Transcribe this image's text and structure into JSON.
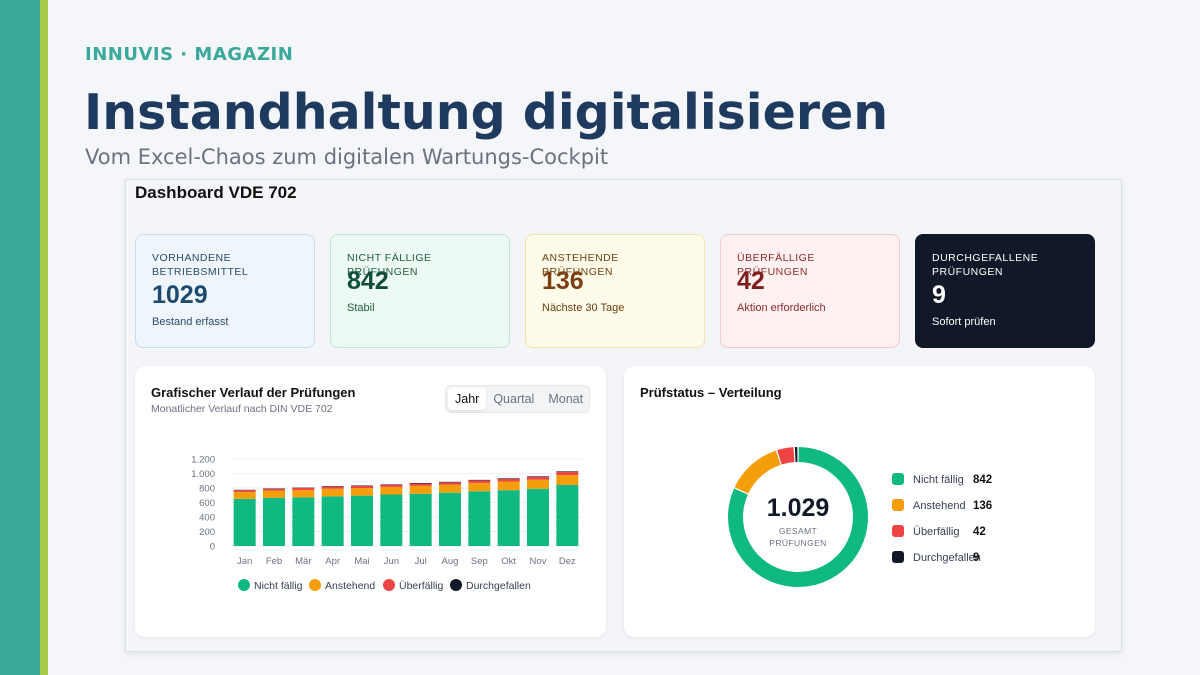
{
  "header": {
    "brand": "INNUVIS · MAGAZIN",
    "title": "Instandhaltung digitalisieren",
    "subtitle": "Vom Excel-Chaos zum digitalen Wartungs-Cockpit"
  },
  "dashboard": {
    "title": "Dashboard VDE 702",
    "cards": [
      {
        "label": "VORHANDENE BETRIEBSMITTEL",
        "value": 1029,
        "note": "Bestand erfasst"
      },
      {
        "label": "NICHT FÄLLIGE PRÜFUNGEN",
        "value": 842,
        "note": "Stabil"
      },
      {
        "label": "ANSTEHENDE PRÜFUNGEN",
        "value": 136,
        "note": "Nächste 30 Tage"
      },
      {
        "label": "ÜBERFÄLLIGE PRÜFUNGEN",
        "value": 42,
        "note": "Aktion erforderlich"
      },
      {
        "label": "DURCHGEFALLENE PRÜFUNGEN",
        "value": 9,
        "note": "Sofort prüfen"
      }
    ],
    "tabs": [
      "Jahr",
      "Quartal",
      "Monat"
    ]
  },
  "chart_data": [
    {
      "type": "bar",
      "stacked": true,
      "title": "Grafischer Verlauf der Prüfungen",
      "subtitle": "Monatlicher Verlauf nach DIN VDE 702",
      "categories": [
        "Jan",
        "Feb",
        "Mär",
        "Apr",
        "Mai",
        "Jun",
        "Jul",
        "Aug",
        "Sep",
        "Okt",
        "Nov",
        "Dez"
      ],
      "series": [
        {
          "name": "Nicht fällig",
          "color": "#10b981",
          "values": [
            650,
            665,
            672,
            685,
            695,
            710,
            720,
            735,
            755,
            770,
            790,
            842
          ]
        },
        {
          "name": "Anstehend",
          "color": "#f59e0b",
          "values": [
            95,
            100,
            100,
            105,
            105,
            105,
            110,
            110,
            115,
            120,
            125,
            136
          ]
        },
        {
          "name": "Überfällig",
          "color": "#ef4444",
          "values": [
            25,
            25,
            28,
            30,
            30,
            30,
            32,
            33,
            35,
            36,
            38,
            42
          ]
        },
        {
          "name": "Durchgefallen",
          "color": "#111827",
          "values": [
            5,
            5,
            5,
            6,
            6,
            6,
            7,
            7,
            7,
            8,
            8,
            9
          ]
        }
      ],
      "ylim": [
        0,
        1200
      ],
      "yticks": [
        0,
        200,
        400,
        600,
        800,
        {
          "value": 1000,
          "label": "1.000"
        },
        {
          "value": 1200,
          "label": "1.200"
        }
      ],
      "grid": true,
      "legend": "bottom"
    },
    {
      "type": "donut",
      "title": "Prüfstatus – Verteilung",
      "categories": [
        "Nicht fällig",
        "Anstehend",
        "Überfällig",
        "Durchgefallen"
      ],
      "values": [
        842,
        136,
        42,
        9
      ],
      "colors": [
        "#10b981",
        "#f59e0b",
        "#ef4444",
        "#111827"
      ],
      "center_label": "1.029",
      "center_caption": "GESAMT PRÜFUNGEN",
      "legend": "right"
    }
  ]
}
